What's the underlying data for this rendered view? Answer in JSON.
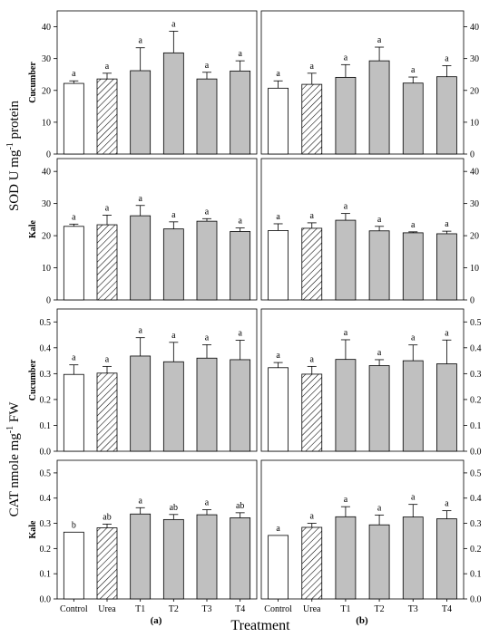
{
  "colors": {
    "control": "#ffffff",
    "urea": "#ffffff",
    "treatment": "#c0c0c0",
    "stroke": "#000000"
  },
  "labels": {
    "sod_ylabel_main": "SOD U mg",
    "sod_ylabel_sup": "-1",
    "sod_ylabel_tail": " protein",
    "cat_ylabel_main": "CAT nmole mg",
    "cat_ylabel_sup": "-1",
    "cat_ylabel_tail": " FW",
    "xlabel": "Treatment",
    "panel_a": "(a)",
    "panel_b": "(b)"
  },
  "chart_data": [
    {
      "id": "sod-cucumber-a",
      "type": "bar",
      "row_label": "Cucumber",
      "categories": [
        "Control",
        "Urea",
        "T1",
        "T2",
        "T3",
        "T4"
      ],
      "values": [
        22.2,
        23.6,
        26.2,
        31.8,
        23.6,
        26.1
      ],
      "errors": [
        0.8,
        1.8,
        7.2,
        6.8,
        2.1,
        3.2
      ],
      "letters": [
        "a",
        "a",
        "a",
        "a",
        "a",
        "a"
      ],
      "ylim": [
        0,
        45
      ],
      "yticks": [
        "0",
        "10",
        "20",
        "30",
        "40"
      ],
      "ytick_values": [
        0,
        10,
        20,
        30,
        40
      ],
      "y_axis_side": "left"
    },
    {
      "id": "sod-cucumber-b",
      "type": "bar",
      "row_label": "",
      "categories": [
        "Control",
        "Urea",
        "T1",
        "T2",
        "T3",
        "T4"
      ],
      "values": [
        20.7,
        21.9,
        24.1,
        29.3,
        22.3,
        24.3
      ],
      "errors": [
        2.3,
        3.5,
        4.0,
        4.3,
        1.9,
        3.5
      ],
      "letters": [
        "a",
        "a",
        "a",
        "a",
        "a",
        "a"
      ],
      "ylim": [
        0,
        45
      ],
      "yticks": [
        "0",
        "10",
        "20",
        "30",
        "40"
      ],
      "ytick_values": [
        0,
        10,
        20,
        30,
        40
      ],
      "y_axis_side": "right"
    },
    {
      "id": "sod-kale-a",
      "type": "bar",
      "row_label": "Kale",
      "categories": [
        "Control",
        "Urea",
        "T1",
        "T2",
        "T3",
        "T4"
      ],
      "values": [
        22.9,
        23.4,
        26.2,
        22.1,
        24.5,
        21.3
      ],
      "errors": [
        0.7,
        3.0,
        3.2,
        2.2,
        0.8,
        1.1
      ],
      "letters": [
        "a",
        "a",
        "a",
        "a",
        "a",
        "a"
      ],
      "ylim": [
        0,
        44
      ],
      "yticks": [
        "0",
        "10",
        "20",
        "30",
        "40"
      ],
      "ytick_values": [
        0,
        10,
        20,
        30,
        40
      ],
      "y_axis_side": "left"
    },
    {
      "id": "sod-kale-b",
      "type": "bar",
      "row_label": "",
      "categories": [
        "Control",
        "Urea",
        "T1",
        "T2",
        "T3",
        "T4"
      ],
      "values": [
        21.6,
        22.3,
        24.8,
        21.5,
        20.9,
        20.6
      ],
      "errors": [
        2.1,
        1.7,
        2.1,
        1.4,
        0.3,
        0.8
      ],
      "letters": [
        "a",
        "a",
        "a",
        "a",
        "a",
        "a"
      ],
      "ylim": [
        0,
        44
      ],
      "yticks": [
        "0",
        "10",
        "20",
        "30",
        "40"
      ],
      "ytick_values": [
        0,
        10,
        20,
        30,
        40
      ],
      "y_axis_side": "right"
    },
    {
      "id": "cat-cucumber-a",
      "type": "bar",
      "row_label": "Cucumber",
      "categories": [
        "Control",
        "Urea",
        "T1",
        "T2",
        "T3",
        "T4"
      ],
      "values": [
        0.297,
        0.302,
        0.368,
        0.346,
        0.36,
        0.354
      ],
      "errors": [
        0.037,
        0.026,
        0.071,
        0.075,
        0.052,
        0.075
      ],
      "letters": [
        "a",
        "a",
        "a",
        "a",
        "a",
        "a"
      ],
      "ylim": [
        0,
        0.55
      ],
      "yticks": [
        "0.0",
        "0.1",
        "0.2",
        "0.3",
        "0.4",
        "0.5"
      ],
      "ytick_values": [
        0,
        0.1,
        0.2,
        0.3,
        0.4,
        0.5
      ],
      "y_axis_side": "left"
    },
    {
      "id": "cat-cucumber-b",
      "type": "bar",
      "row_label": "",
      "categories": [
        "Control",
        "Urea",
        "T1",
        "T2",
        "T3",
        "T4"
      ],
      "values": [
        0.323,
        0.298,
        0.355,
        0.331,
        0.35,
        0.338
      ],
      "errors": [
        0.02,
        0.03,
        0.076,
        0.023,
        0.061,
        0.092
      ],
      "letters": [
        "a",
        "a",
        "a",
        "a",
        "a",
        "a"
      ],
      "ylim": [
        0,
        0.55
      ],
      "yticks": [
        "0.0",
        "0.1",
        "0.2",
        "0.3",
        "0.4",
        "0.5"
      ],
      "ytick_values": [
        0,
        0.1,
        0.2,
        0.3,
        0.4,
        0.5
      ],
      "y_axis_side": "right"
    },
    {
      "id": "cat-kale-a",
      "type": "bar",
      "row_label": "Kale",
      "categories": [
        "Control",
        "Urea",
        "T1",
        "T2",
        "T3",
        "T4"
      ],
      "values": [
        0.265,
        0.282,
        0.337,
        0.315,
        0.334,
        0.322
      ],
      "errors": [
        0.0,
        0.015,
        0.025,
        0.02,
        0.02,
        0.02
      ],
      "letters": [
        "b",
        "ab",
        "a",
        "ab",
        "a",
        "ab"
      ],
      "ylim": [
        0,
        0.55
      ],
      "yticks": [
        "0.0",
        "0.1",
        "0.2",
        "0.3",
        "0.4",
        "0.5"
      ],
      "ytick_values": [
        0,
        0.1,
        0.2,
        0.3,
        0.4,
        0.5
      ],
      "y_axis_side": "left"
    },
    {
      "id": "cat-kale-b",
      "type": "bar",
      "row_label": "",
      "categories": [
        "Control",
        "Urea",
        "T1",
        "T2",
        "T3",
        "T4"
      ],
      "values": [
        0.252,
        0.284,
        0.326,
        0.294,
        0.325,
        0.318
      ],
      "errors": [
        0.0,
        0.016,
        0.04,
        0.039,
        0.05,
        0.032
      ],
      "letters": [
        "a",
        "a",
        "a",
        "a",
        "a",
        "a"
      ],
      "ylim": [
        0,
        0.55
      ],
      "yticks": [
        "0.0",
        "0.1",
        "0.2",
        "0.3",
        "0.4",
        "0.5"
      ],
      "ytick_values": [
        0,
        0.1,
        0.2,
        0.3,
        0.4,
        0.5
      ],
      "y_axis_side": "right"
    }
  ]
}
